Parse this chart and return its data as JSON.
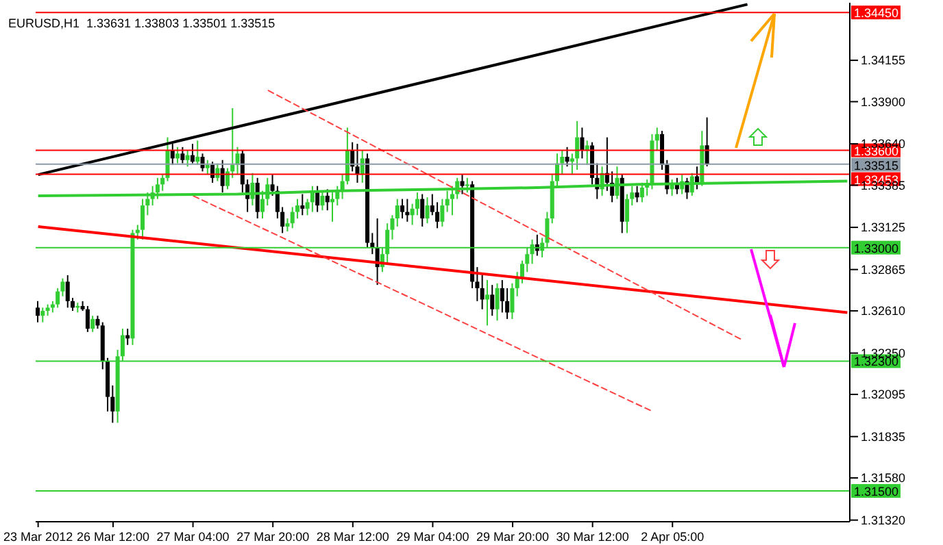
{
  "chart_data": {
    "type": "candlestick",
    "annotations": [
      "EURUSD,H1  1.33631 1.33803 1.33501 1.33515"
    ],
    "categories": [
      "23 Mar 2012",
      null,
      null,
      null,
      null,
      null,
      null,
      null,
      null,
      null,
      null,
      null,
      null,
      null,
      null,
      "26 Mar 12:00",
      null,
      null,
      null,
      null,
      null,
      null,
      null,
      null,
      null,
      null,
      null,
      null,
      null,
      null,
      null,
      "27 Mar 04:00",
      null,
      null,
      null,
      null,
      null,
      null,
      null,
      null,
      null,
      null,
      null,
      null,
      null,
      null,
      null,
      "27 Mar 20:00",
      null,
      null,
      null,
      null,
      null,
      null,
      null,
      null,
      null,
      null,
      null,
      null,
      null,
      null,
      null,
      "28 Mar 12:00",
      null,
      null,
      null,
      null,
      null,
      null,
      null,
      null,
      null,
      null,
      null,
      null,
      null,
      null,
      null,
      "29 Mar 04:00",
      null,
      null,
      null,
      null,
      null,
      null,
      null,
      null,
      null,
      null,
      null,
      null,
      null,
      null,
      null,
      "29 Mar 20:00",
      null,
      null,
      null,
      null,
      null,
      null,
      null,
      null,
      null,
      null,
      null,
      null,
      null,
      null,
      null,
      "30 Mar 12:00",
      null,
      null,
      null,
      null,
      null,
      null,
      null,
      null,
      null,
      null,
      null,
      null,
      null,
      null,
      null,
      "2 Apr 05:00",
      null,
      null,
      null,
      null,
      null,
      null,
      null,
      null,
      null,
      null,
      null,
      null,
      null,
      null,
      null,
      null,
      null,
      null,
      null,
      null,
      null,
      null,
      null,
      null,
      null,
      null,
      null,
      null,
      null,
      null,
      null,
      null,
      null,
      null,
      null
    ],
    "ohlc": [
      [
        1.3263,
        1.3267,
        1.3254,
        1.3258
      ],
      [
        1.3258,
        1.3263,
        1.3254,
        1.3261
      ],
      [
        1.3261,
        1.3265,
        1.3258,
        1.3263
      ],
      [
        1.3263,
        1.3267,
        1.326,
        1.3265
      ],
      [
        1.3265,
        1.3275,
        1.3263,
        1.3273
      ],
      [
        1.3273,
        1.3281,
        1.327,
        1.3279
      ],
      [
        1.3279,
        1.3283,
        1.3263,
        1.3267
      ],
      [
        1.3267,
        1.3269,
        1.3261,
        1.3263
      ],
      [
        1.3263,
        1.3266,
        1.326,
        1.3264
      ],
      [
        1.3264,
        1.3267,
        1.3261,
        1.3262
      ],
      [
        1.3262,
        1.3264,
        1.3248,
        1.325
      ],
      [
        1.325,
        1.3258,
        1.3248,
        1.3256
      ],
      [
        1.3256,
        1.3258,
        1.325,
        1.3252
      ],
      [
        1.3252,
        1.3254,
        1.3225,
        1.323
      ],
      [
        1.323,
        1.3232,
        1.3199,
        1.3208
      ],
      [
        1.3208,
        1.3215,
        1.3192,
        1.3199
      ],
      [
        1.3199,
        1.3237,
        1.3192,
        1.3233
      ],
      [
        1.3233,
        1.325,
        1.323,
        1.3246
      ],
      [
        1.3246,
        1.325,
        1.324,
        1.3244
      ],
      [
        1.3244,
        1.3311,
        1.324,
        1.3309
      ],
      [
        1.3309,
        1.3314,
        1.3305,
        1.3311
      ],
      [
        1.3311,
        1.333,
        1.3305,
        1.3326
      ],
      [
        1.3326,
        1.3334,
        1.332,
        1.333
      ],
      [
        1.333,
        1.3338,
        1.3326,
        1.3334
      ],
      [
        1.3334,
        1.3343,
        1.333,
        1.3339
      ],
      [
        1.3339,
        1.3345,
        1.3335,
        1.3343
      ],
      [
        1.3343,
        1.3368,
        1.3341,
        1.336
      ],
      [
        1.336,
        1.3364,
        1.3351,
        1.3355
      ],
      [
        1.3355,
        1.3362,
        1.3352,
        1.3358
      ],
      [
        1.3358,
        1.3362,
        1.3352,
        1.3354
      ],
      [
        1.3354,
        1.336,
        1.335,
        1.3357
      ],
      [
        1.3357,
        1.3364,
        1.3352,
        1.3353
      ],
      [
        1.3353,
        1.3366,
        1.3351,
        1.3356
      ],
      [
        1.3356,
        1.3358,
        1.3347,
        1.3349
      ],
      [
        1.3349,
        1.3354,
        1.3345,
        1.3351
      ],
      [
        1.3351,
        1.3353,
        1.334,
        1.3343
      ],
      [
        1.3343,
        1.3352,
        1.3341,
        1.3349
      ],
      [
        1.3349,
        1.3354,
        1.3334,
        1.3338
      ],
      [
        1.3338,
        1.3349,
        1.3336,
        1.3347
      ],
      [
        1.3347,
        1.3386,
        1.3343,
        1.3351
      ],
      [
        1.3351,
        1.3362,
        1.3345,
        1.3358
      ],
      [
        1.3358,
        1.336,
        1.3334,
        1.3339
      ],
      [
        1.3339,
        1.3342,
        1.3322,
        1.333
      ],
      [
        1.333,
        1.3346,
        1.3326,
        1.334
      ],
      [
        1.334,
        1.3343,
        1.3318,
        1.3322
      ],
      [
        1.3322,
        1.3335,
        1.3318,
        1.333
      ],
      [
        1.333,
        1.3343,
        1.3326,
        1.3339
      ],
      [
        1.3339,
        1.3345,
        1.3332,
        1.3335
      ],
      [
        1.3335,
        1.3338,
        1.3318,
        1.3322
      ],
      [
        1.3322,
        1.3325,
        1.3309,
        1.3313
      ],
      [
        1.3313,
        1.3318,
        1.331,
        1.3315
      ],
      [
        1.3315,
        1.3325,
        1.3312,
        1.3322
      ],
      [
        1.3322,
        1.333,
        1.3318,
        1.3326
      ],
      [
        1.3326,
        1.3333,
        1.332,
        1.3324
      ],
      [
        1.3324,
        1.333,
        1.332,
        1.3328
      ],
      [
        1.3328,
        1.3338,
        1.3322,
        1.3334
      ],
      [
        1.3334,
        1.3338,
        1.3322,
        1.3326
      ],
      [
        1.3326,
        1.3335,
        1.3323,
        1.3332
      ],
      [
        1.3332,
        1.3336,
        1.3323,
        1.3328
      ],
      [
        1.3328,
        1.3334,
        1.3316,
        1.333
      ],
      [
        1.333,
        1.3338,
        1.3326,
        1.3335
      ],
      [
        1.3335,
        1.3345,
        1.333,
        1.3341
      ],
      [
        1.3341,
        1.3374,
        1.3339,
        1.336
      ],
      [
        1.336,
        1.3365,
        1.3347,
        1.335
      ],
      [
        1.335,
        1.3364,
        1.334,
        1.3345
      ],
      [
        1.3345,
        1.336,
        1.334,
        1.3355
      ],
      [
        1.3355,
        1.3358,
        1.33,
        1.3303
      ],
      [
        1.3303,
        1.3309,
        1.3296,
        1.33
      ],
      [
        1.33,
        1.3318,
        1.3277,
        1.3288
      ],
      [
        1.3288,
        1.33,
        1.3285,
        1.3296
      ],
      [
        1.3296,
        1.3315,
        1.329,
        1.3311
      ],
      [
        1.3311,
        1.332,
        1.3305,
        1.3318
      ],
      [
        1.3318,
        1.333,
        1.3313,
        1.3326
      ],
      [
        1.3326,
        1.333,
        1.3318,
        1.3322
      ],
      [
        1.3322,
        1.333,
        1.3316,
        1.332
      ],
      [
        1.332,
        1.3327,
        1.3314,
        1.3324
      ],
      [
        1.3324,
        1.3334,
        1.332,
        1.333
      ],
      [
        1.333,
        1.3333,
        1.3313,
        1.3318
      ],
      [
        1.3318,
        1.3331,
        1.3315,
        1.3326
      ],
      [
        1.3326,
        1.3333,
        1.332,
        1.3322
      ],
      [
        1.3322,
        1.3328,
        1.3312,
        1.3316
      ],
      [
        1.3316,
        1.333,
        1.3313,
        1.3326
      ],
      [
        1.3326,
        1.3335,
        1.3322,
        1.333
      ],
      [
        1.333,
        1.3338,
        1.332,
        1.3333
      ],
      [
        1.3333,
        1.3343,
        1.333,
        1.3341
      ],
      [
        1.3341,
        1.3345,
        1.3333,
        1.3338
      ],
      [
        1.3338,
        1.3343,
        1.3334,
        1.3339
      ],
      [
        1.3339,
        1.3341,
        1.3275,
        1.3279
      ],
      [
        1.3279,
        1.3288,
        1.3267,
        1.3275
      ],
      [
        1.3275,
        1.3284,
        1.3262,
        1.3268
      ],
      [
        1.3268,
        1.328,
        1.3252,
        1.3271
      ],
      [
        1.3271,
        1.3277,
        1.3258,
        1.3262
      ],
      [
        1.3262,
        1.3278,
        1.3255,
        1.3275
      ],
      [
        1.3275,
        1.328,
        1.326,
        1.3267
      ],
      [
        1.3267,
        1.3275,
        1.3256,
        1.326
      ],
      [
        1.326,
        1.3278,
        1.3256,
        1.3275
      ],
      [
        1.3275,
        1.3285,
        1.327,
        1.3282
      ],
      [
        1.3282,
        1.3292,
        1.3278,
        1.329
      ],
      [
        1.329,
        1.33,
        1.3285,
        1.3296
      ],
      [
        1.3296,
        1.3305,
        1.329,
        1.3302
      ],
      [
        1.3302,
        1.3308,
        1.3295,
        1.3298
      ],
      [
        1.3298,
        1.3306,
        1.3294,
        1.3303
      ],
      [
        1.3303,
        1.3322,
        1.33,
        1.3318
      ],
      [
        1.3318,
        1.3345,
        1.3315,
        1.3341
      ],
      [
        1.3341,
        1.3358,
        1.3337,
        1.3352
      ],
      [
        1.3352,
        1.336,
        1.3345,
        1.3356
      ],
      [
        1.3356,
        1.3362,
        1.335,
        1.3353
      ],
      [
        1.3353,
        1.3358,
        1.3345,
        1.3355
      ],
      [
        1.3355,
        1.3378,
        1.3348,
        1.3368
      ],
      [
        1.3368,
        1.3374,
        1.3355,
        1.336
      ],
      [
        1.336,
        1.3366,
        1.3351,
        1.3363
      ],
      [
        1.3363,
        1.3365,
        1.3339,
        1.3343
      ],
      [
        1.3343,
        1.3352,
        1.333,
        1.3336
      ],
      [
        1.3336,
        1.335,
        1.3332,
        1.3346
      ],
      [
        1.3346,
        1.3368,
        1.3335,
        1.334
      ],
      [
        1.334,
        1.3347,
        1.3328,
        1.3332
      ],
      [
        1.3332,
        1.335,
        1.333,
        1.3343
      ],
      [
        1.3343,
        1.3345,
        1.3309,
        1.3316
      ],
      [
        1.3316,
        1.3333,
        1.3309,
        1.333
      ],
      [
        1.333,
        1.3338,
        1.3326,
        1.3334
      ],
      [
        1.3334,
        1.3338,
        1.3328,
        1.3331
      ],
      [
        1.3331,
        1.334,
        1.3328,
        1.3337
      ],
      [
        1.3337,
        1.3342,
        1.3332,
        1.3339
      ],
      [
        1.3339,
        1.337,
        1.3336,
        1.3366
      ],
      [
        1.3366,
        1.3374,
        1.336,
        1.337
      ],
      [
        1.337,
        1.3372,
        1.3348,
        1.3351
      ],
      [
        1.3351,
        1.3354,
        1.3333,
        1.3336
      ],
      [
        1.3336,
        1.3342,
        1.3332,
        1.3339
      ],
      [
        1.3339,
        1.3343,
        1.3333,
        1.3336
      ],
      [
        1.3336,
        1.3345,
        1.3333,
        1.3341
      ],
      [
        1.3341,
        1.3343,
        1.333,
        1.3334
      ],
      [
        1.3334,
        1.3346,
        1.3332,
        1.3344
      ],
      [
        1.3344,
        1.335,
        1.3336,
        1.334
      ],
      [
        1.334,
        1.3372,
        1.3338,
        1.3363
      ],
      [
        1.33631,
        1.33803,
        1.33501,
        1.33515
      ],
      null,
      null,
      null,
      null,
      null,
      null,
      null,
      null,
      null,
      null,
      null,
      null,
      null,
      null,
      null,
      null,
      null,
      null,
      null,
      null,
      null,
      null,
      null,
      null,
      null,
      null,
      null,
      null
    ],
    "series": [
      {
        "type": "line",
        "color": "#000000",
        "values": [
          1.3345,
          null,
          null,
          null,
          null,
          null,
          null,
          null,
          null,
          null,
          null,
          null,
          null,
          null,
          null,
          null,
          null,
          null,
          null,
          null,
          null,
          null,
          null,
          null,
          null,
          null,
          null,
          null,
          null,
          null,
          null,
          null,
          null,
          null,
          null,
          null,
          null,
          null,
          null,
          null,
          null,
          null,
          null,
          null,
          null,
          null,
          null,
          null,
          null,
          null,
          null,
          null,
          null,
          null,
          null,
          null,
          null,
          null,
          null,
          null,
          null,
          null,
          null,
          null,
          null,
          null,
          null,
          null,
          null,
          null,
          null,
          null,
          null,
          null,
          null,
          null,
          null,
          null,
          null,
          null,
          null,
          null,
          null,
          null,
          null,
          null,
          null,
          null,
          null,
          null,
          null,
          null,
          null,
          null,
          null,
          null,
          null,
          null,
          null,
          null,
          null,
          null,
          null,
          null,
          null,
          null,
          null,
          null,
          null,
          null,
          null,
          null,
          null,
          null,
          null,
          null,
          null,
          null,
          null,
          null,
          null,
          null,
          null,
          null,
          null,
          null,
          null,
          null,
          null,
          null,
          null,
          null,
          null,
          null,
          null,
          null,
          null,
          null,
          null,
          null,
          null,
          null,
          1.345,
          null,
          null,
          null,
          null,
          null,
          null,
          null,
          null,
          null,
          null,
          null,
          null,
          null,
          null,
          null,
          null,
          null,
          null,
          null,
          null
        ]
      },
      {
        "type": "line",
        "color": "#ff0000",
        "values": [
          1.3313,
          null,
          null,
          null,
          null,
          null,
          null,
          null,
          null,
          null,
          null,
          null,
          null,
          null,
          null,
          null,
          null,
          null,
          null,
          null,
          null,
          null,
          null,
          null,
          null,
          null,
          null,
          null,
          null,
          null,
          null,
          null,
          null,
          null,
          null,
          null,
          null,
          null,
          null,
          null,
          null,
          null,
          null,
          null,
          null,
          null,
          null,
          null,
          null,
          null,
          null,
          null,
          null,
          null,
          null,
          null,
          null,
          null,
          null,
          null,
          null,
          null,
          null,
          null,
          null,
          null,
          null,
          null,
          null,
          null,
          null,
          null,
          null,
          null,
          null,
          null,
          null,
          null,
          null,
          null,
          null,
          null,
          null,
          null,
          null,
          null,
          null,
          null,
          null,
          null,
          null,
          null,
          null,
          null,
          null,
          null,
          null,
          null,
          null,
          null,
          null,
          null,
          null,
          null,
          null,
          null,
          null,
          null,
          null,
          null,
          null,
          null,
          null,
          null,
          null,
          null,
          null,
          null,
          null,
          null,
          null,
          null,
          null,
          null,
          null,
          null,
          null,
          null,
          null,
          null,
          null,
          null,
          null,
          null,
          null,
          null,
          null,
          null,
          null,
          null,
          null,
          null,
          null,
          null,
          null,
          null,
          null,
          null,
          null,
          null,
          null,
          null,
          null,
          null,
          null,
          null,
          null,
          null,
          null,
          null,
          null,
          null,
          1.326
        ]
      },
      {
        "type": "line",
        "color": "#ff4040",
        "line_style": "dashed",
        "values": [
          null,
          null,
          null,
          null,
          null,
          null,
          null,
          null,
          null,
          null,
          null,
          null,
          null,
          null,
          null,
          null,
          null,
          null,
          null,
          null,
          null,
          null,
          null,
          null,
          null,
          null,
          null,
          null,
          null,
          null,
          null,
          null,
          null,
          null,
          null,
          null,
          null,
          null,
          null,
          null,
          null,
          null,
          null,
          null,
          null,
          null,
          1.3397,
          null,
          null,
          null,
          null,
          null,
          null,
          null,
          null,
          null,
          null,
          null,
          null,
          null,
          null,
          null,
          null,
          null,
          null,
          null,
          null,
          null,
          null,
          null,
          null,
          null,
          null,
          null,
          null,
          null,
          null,
          null,
          null,
          null,
          null,
          null,
          null,
          null,
          null,
          null,
          null,
          null,
          null,
          null,
          null,
          null,
          null,
          null,
          null,
          null,
          null,
          null,
          null,
          null,
          null,
          null,
          null,
          null,
          null,
          null,
          null,
          null,
          null,
          null,
          null,
          null,
          null,
          null,
          null,
          null,
          null,
          null,
          null,
          null,
          null,
          null,
          null,
          null,
          null,
          null,
          null,
          null,
          null,
          null,
          null,
          null,
          null,
          null,
          null,
          null,
          null,
          null,
          null,
          null,
          null,
          1.3243,
          null,
          null,
          null,
          null,
          null,
          null,
          null,
          null,
          null,
          null,
          null,
          null,
          null,
          null,
          null,
          null,
          null,
          null,
          null,
          null,
          null
        ]
      },
      {
        "type": "line",
        "color": "#ff4040",
        "line_style": "dashed",
        "values": [
          null,
          null,
          null,
          null,
          null,
          null,
          null,
          null,
          null,
          null,
          null,
          null,
          null,
          null,
          null,
          null,
          null,
          null,
          null,
          null,
          null,
          null,
          null,
          null,
          null,
          null,
          null,
          null,
          null,
          null,
          null,
          1.3332,
          null,
          null,
          null,
          null,
          null,
          null,
          null,
          null,
          null,
          null,
          null,
          null,
          null,
          null,
          null,
          null,
          null,
          null,
          null,
          null,
          null,
          null,
          null,
          null,
          null,
          null,
          null,
          null,
          null,
          null,
          null,
          null,
          null,
          null,
          null,
          null,
          null,
          null,
          null,
          null,
          null,
          null,
          null,
          null,
          null,
          null,
          null,
          null,
          null,
          null,
          null,
          null,
          null,
          null,
          null,
          null,
          null,
          null,
          null,
          null,
          null,
          null,
          null,
          null,
          null,
          null,
          null,
          null,
          null,
          null,
          null,
          null,
          null,
          null,
          null,
          null,
          null,
          null,
          null,
          null,
          null,
          null,
          null,
          null,
          null,
          null,
          null,
          null,
          null,
          null,
          null,
          1.3199,
          null,
          null,
          null,
          null,
          null,
          null,
          null,
          null,
          null,
          null,
          null,
          null,
          null,
          null,
          null,
          null,
          null,
          null,
          null,
          null,
          null,
          null,
          null,
          null,
          null,
          null,
          null,
          null,
          null,
          null,
          null,
          null,
          null,
          null,
          null,
          null,
          null,
          null,
          null
        ]
      },
      {
        "type": "line",
        "color": "#32cd32",
        "values": [
          1.3332,
          null,
          null,
          null,
          null,
          null,
          null,
          null,
          null,
          null,
          null,
          null,
          null,
          null,
          null,
          null,
          null,
          null,
          null,
          null,
          null,
          null,
          null,
          null,
          null,
          null,
          null,
          null,
          null,
          null,
          null,
          null,
          null,
          null,
          null,
          null,
          null,
          null,
          null,
          null,
          1.3333,
          null,
          null,
          null,
          null,
          null,
          null,
          null,
          null,
          null,
          null,
          null,
          null,
          null,
          null,
          null,
          null,
          null,
          null,
          null,
          1.3335,
          null,
          null,
          null,
          null,
          null,
          null,
          null,
          null,
          null,
          null,
          null,
          null,
          null,
          null,
          null,
          null,
          null,
          null,
          null,
          1.3336,
          null,
          null,
          null,
          null,
          null,
          null,
          null,
          null,
          null,
          null,
          null,
          null,
          null,
          null,
          null,
          null,
          null,
          null,
          null,
          1.3337,
          null,
          null,
          null,
          null,
          null,
          null,
          null,
          null,
          null,
          null,
          null,
          null,
          null,
          null,
          null,
          null,
          null,
          null,
          null,
          1.3339,
          null,
          null,
          null,
          null,
          null,
          null,
          null,
          null,
          null,
          null,
          null,
          null,
          null,
          null,
          null,
          null,
          null,
          null,
          null,
          null,
          null,
          null,
          null,
          null,
          null,
          null,
          null,
          null,
          null,
          null,
          null,
          null,
          null,
          null,
          null,
          null,
          null,
          null,
          null,
          null,
          null,
          1.3341
        ]
      }
    ],
    "ylim": [
      1.3131,
      1.3451
    ],
    "yticks": [
      {
        "value": 1.3132,
        "label": "1.31320"
      },
      {
        "value": 1.3158,
        "label": "1.31580"
      },
      {
        "value": 1.31835,
        "label": "1.31835"
      },
      {
        "value": 1.32095,
        "label": "1.32095"
      },
      {
        "value": 1.3235,
        "label": "1.32350"
      },
      {
        "value": 1.3261,
        "label": "1.32610"
      },
      {
        "value": 1.32865,
        "label": "1.32865"
      },
      {
        "value": 1.33125,
        "label": "1.33125"
      },
      {
        "value": 1.33385,
        "label": "1.33385"
      },
      {
        "value": 1.3364,
        "label": "1.33640"
      },
      {
        "value": 1.339,
        "label": "1.33900"
      },
      {
        "value": 1.34155,
        "label": "1.34155"
      }
    ],
    "ref_lines": [
      {
        "axis": "y",
        "value": 1.3445,
        "label": "1.34450",
        "color": "#ff0000"
      },
      {
        "axis": "y",
        "value": 1.336,
        "label": "1.33600",
        "color": "#ff0000"
      },
      {
        "axis": "y",
        "value": 1.33515,
        "label": "1.33515",
        "color": "#8c9aa8"
      },
      {
        "axis": "y",
        "value": 1.33453,
        "label": "1.33453",
        "color": "#ff0000"
      },
      {
        "axis": "y",
        "value": 1.33,
        "label": "1.33000",
        "color": "#32cd32"
      },
      {
        "axis": "y",
        "value": 1.323,
        "label": "1.32300",
        "color": "#32cd32"
      },
      {
        "axis": "y",
        "value": 1.315,
        "label": "1.31500",
        "color": "#32cd32"
      }
    ]
  }
}
